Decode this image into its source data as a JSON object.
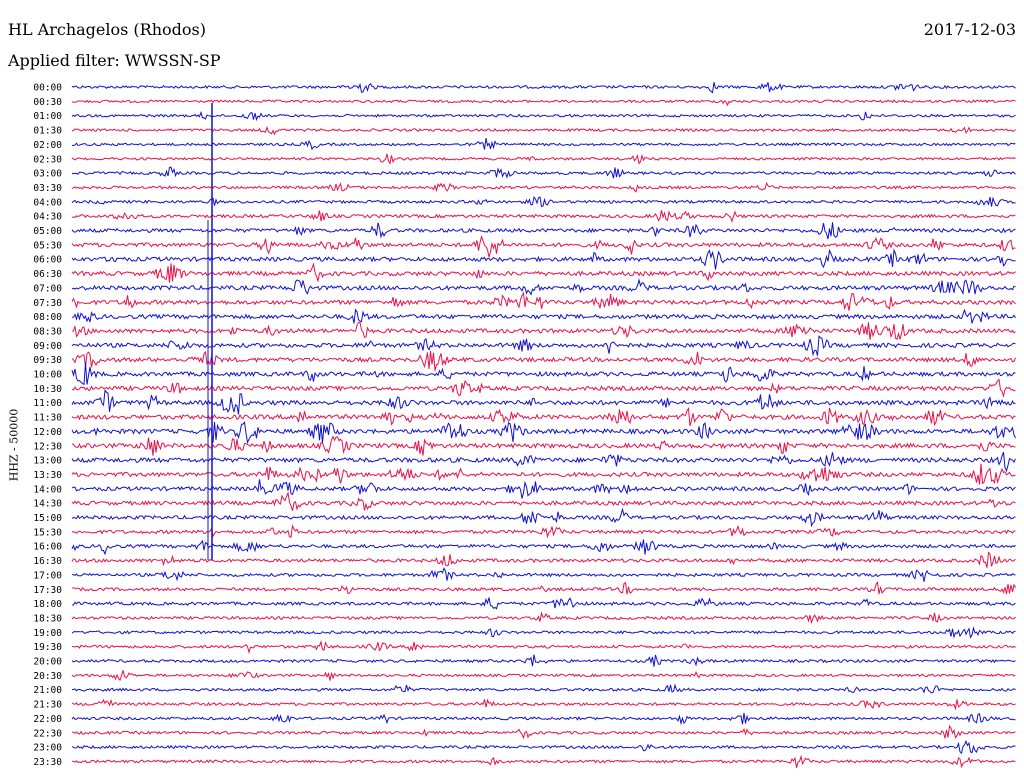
{
  "header": {
    "station": "HL Archagelos (Rhodos)",
    "date": "2017-12-03",
    "filter": "Applied filter: WWSSN-SP"
  },
  "colors": {
    "blue": "#1010d0",
    "red": "#e8104a"
  },
  "chart_data": {
    "type": "line",
    "title": "HL Archagelos (Rhodos)",
    "xlabel": "",
    "ylabel": "HHZ - 50000",
    "series_pattern": "alternating blue/red traces, one per 30 minutes",
    "rows": [
      "00:00",
      "00:30",
      "01:00",
      "01:30",
      "02:00",
      "02:30",
      "03:00",
      "03:30",
      "04:00",
      "04:30",
      "05:00",
      "05:30",
      "06:00",
      "06:30",
      "07:00",
      "07:30",
      "08:00",
      "08:30",
      "09:00",
      "09:30",
      "10:00",
      "10:30",
      "11:00",
      "11:30",
      "12:00",
      "12:30",
      "13:00",
      "13:30",
      "14:00",
      "14:30",
      "15:00",
      "15:30",
      "16:00",
      "16:30",
      "17:00",
      "17:30",
      "18:00",
      "18:30",
      "19:00",
      "19:30",
      "20:00",
      "20:30",
      "21:00",
      "21:30",
      "22:00",
      "22:30",
      "23:00",
      "23:30"
    ],
    "activity": [
      0.4,
      0.3,
      0.3,
      0.3,
      0.3,
      0.3,
      0.4,
      0.4,
      0.4,
      0.5,
      0.7,
      0.8,
      0.9,
      0.9,
      0.9,
      0.9,
      0.9,
      0.9,
      0.9,
      0.9,
      0.9,
      0.9,
      1.0,
      1.0,
      1.0,
      1.0,
      1.0,
      0.9,
      0.8,
      0.8,
      0.7,
      0.6,
      0.6,
      0.6,
      0.5,
      0.5,
      0.5,
      0.4,
      0.4,
      0.4,
      0.4,
      0.3,
      0.4,
      0.4,
      0.4,
      0.4,
      0.4,
      0.4
    ]
  }
}
